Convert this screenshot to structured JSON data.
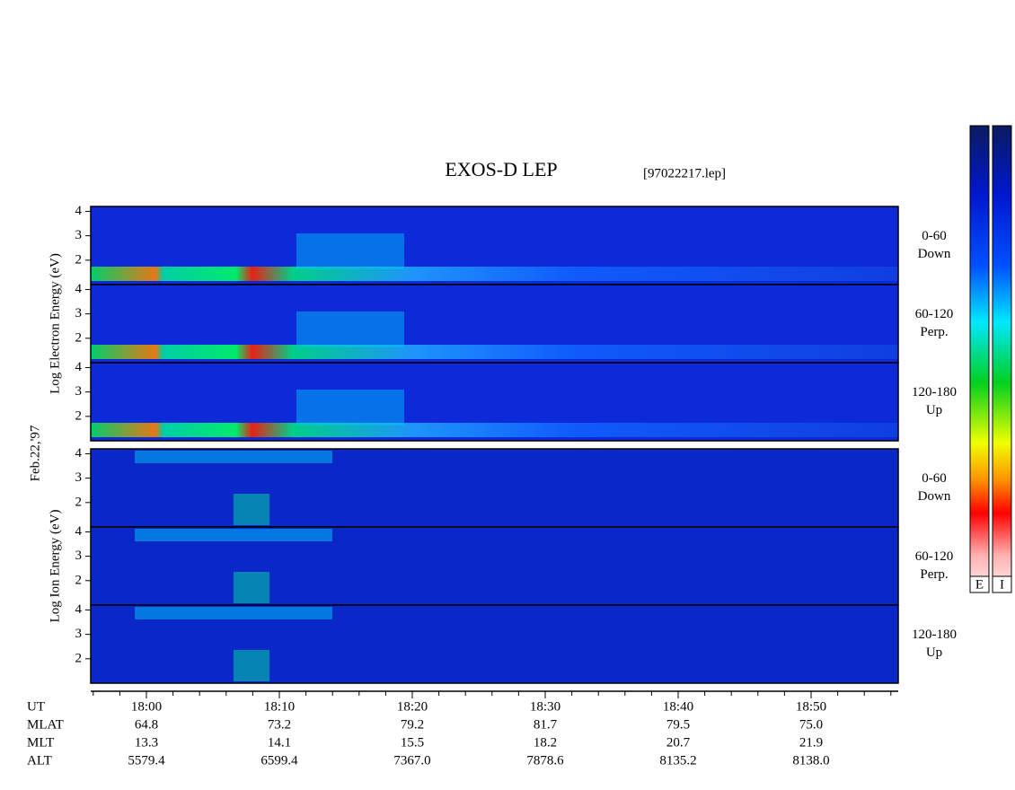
{
  "header": {
    "title": "EXOS-D LEP",
    "file": "[97022217.lep]",
    "date": "Feb.22,'97"
  },
  "electron": {
    "ylabel": "Log Electron Energy (eV)",
    "panels": [
      {
        "label": [
          "0-60",
          "Down"
        ]
      },
      {
        "label": [
          "60-120",
          "Perp."
        ]
      },
      {
        "label": [
          "120-180",
          "Up"
        ]
      }
    ]
  },
  "ion": {
    "ylabel": "Log Ion Energy (eV)",
    "panels": [
      {
        "label": [
          "0-60",
          "Down"
        ]
      },
      {
        "label": [
          "60-120",
          "Perp."
        ]
      },
      {
        "label": [
          "120-180",
          "Up"
        ]
      }
    ]
  },
  "ylim": [
    1,
    4.2
  ],
  "yticks": [
    2,
    3,
    4
  ],
  "ephemeris": {
    "row_labels": [
      "UT",
      "MLAT",
      "MLT",
      "ALT"
    ],
    "columns": [
      [
        "18:00",
        "64.8",
        "13.3",
        "5579.4"
      ],
      [
        "18:10",
        "73.2",
        "14.1",
        "6599.4"
      ],
      [
        "18:20",
        "79.2",
        "15.5",
        "7367.0"
      ],
      [
        "18:30",
        "81.7",
        "18.2",
        "7878.6"
      ],
      [
        "18:40",
        "79.5",
        "20.7",
        "8135.2"
      ],
      [
        "18:50",
        "75.0",
        "21.9",
        "8138.0"
      ]
    ]
  },
  "colorbars": [
    "E",
    "I"
  ]
}
